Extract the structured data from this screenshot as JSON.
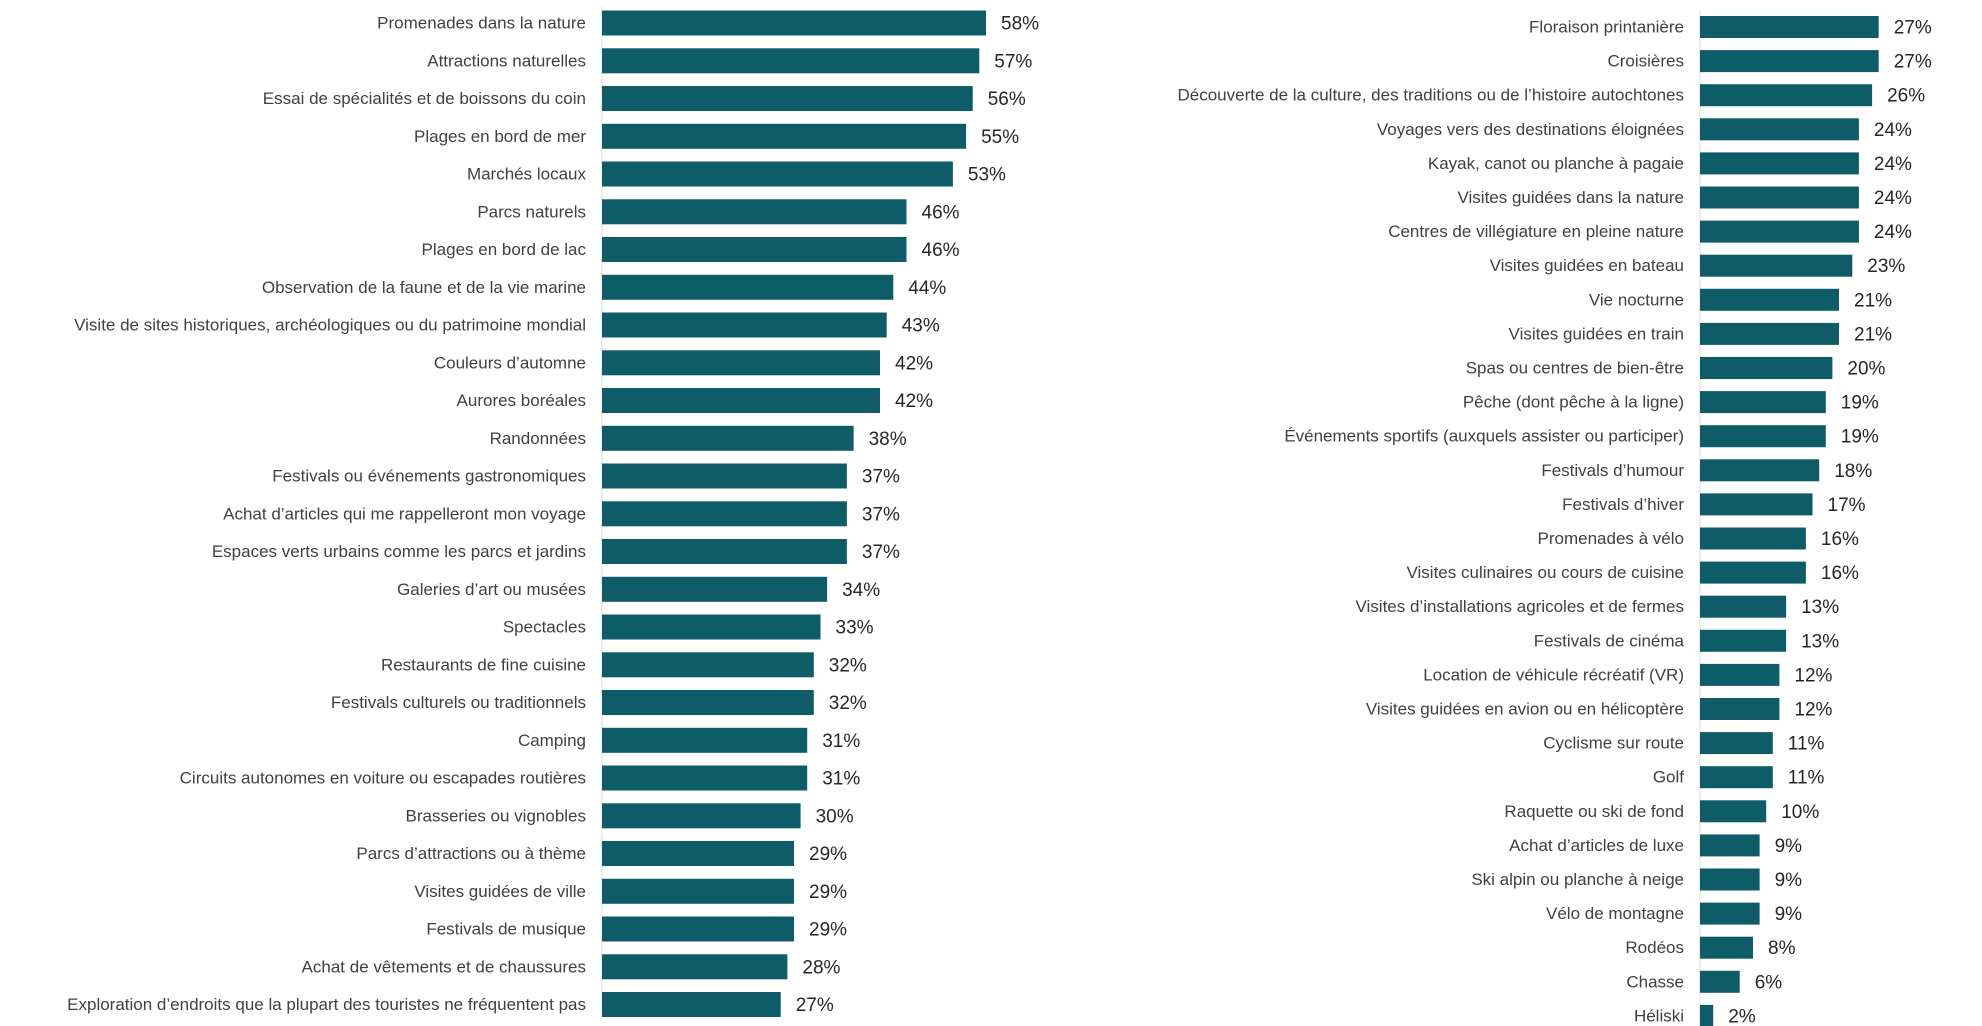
{
  "colors": {
    "bar": "#0d5c67",
    "axis": "#d9d9d9",
    "label": "#404040"
  },
  "chart_data": [
    {
      "type": "bar",
      "orientation": "horizontal",
      "xlim": [
        0,
        60
      ],
      "grid": false,
      "categories": [
        "Promenades dans la nature",
        "Attractions naturelles",
        "Essai de spécialités et de boissons du coin",
        "Plages en bord de mer",
        "Marchés locaux",
        "Parcs naturels",
        "Plages en bord de lac",
        "Observation de la faune et de la vie marine",
        "Visite de sites historiques, archéologiques ou du patrimoine mondial",
        "Couleurs d’automne",
        "Aurores boréales",
        "Randonnées",
        "Festivals ou événements gastronomiques",
        "Achat d’articles qui me rappelleront mon voyage",
        "Espaces verts urbains comme les parcs et jardins",
        "Galeries d’art ou musées",
        "Spectacles",
        "Restaurants de fine cuisine",
        "Festivals culturels ou traditionnels",
        "Camping",
        "Circuits autonomes en voiture ou escapades routières",
        "Brasseries ou vignobles",
        "Parcs d’attractions ou à thème",
        "Visites guidées de ville",
        "Festivals de musique",
        "Achat de vêtements et de chaussures",
        "Exploration d’endroits que la plupart des touristes ne fréquentent pas"
      ],
      "values": [
        58,
        57,
        56,
        55,
        53,
        46,
        46,
        44,
        43,
        42,
        42,
        38,
        37,
        37,
        37,
        34,
        33,
        32,
        32,
        31,
        31,
        30,
        29,
        29,
        29,
        28,
        27
      ],
      "value_labels": [
        "58%",
        "57%",
        "56%",
        "55%",
        "53%",
        "46%",
        "46%",
        "44%",
        "43%",
        "42%",
        "42%",
        "38%",
        "37%",
        "37%",
        "37%",
        "34%",
        "33%",
        "32%",
        "32%",
        "31%",
        "31%",
        "30%",
        "29%",
        "29%",
        "29%",
        "28%",
        "27%"
      ]
    },
    {
      "type": "bar",
      "orientation": "horizontal",
      "xlim": [
        0,
        60
      ],
      "grid": false,
      "categories": [
        "Floraison printanière",
        "Croisières",
        "Découverte de la culture, des traditions ou de l’histoire autochtones",
        "Voyages vers des destinations éloignées",
        "Kayak, canot ou planche à pagaie",
        "Visites guidées dans la nature",
        "Centres de villégiature en pleine nature",
        "Visites guidées en bateau",
        "Vie nocturne",
        "Visites guidées en train",
        "Spas ou centres de bien-être",
        "Pêche (dont pêche à la ligne)",
        "Événements sportifs (auxquels assister ou participer)",
        "Festivals d’humour",
        "Festivals d’hiver",
        "Promenades à vélo",
        "Visites culinaires ou cours de cuisine",
        "Visites d’installations agricoles et de fermes",
        "Festivals de cinéma",
        "Location de véhicule récréatif (VR)",
        "Visites guidées en avion ou en hélicoptère",
        "Cyclisme sur route",
        "Golf",
        "Raquette ou ski de fond",
        "Achat d’articles de luxe",
        "Ski alpin ou planche à neige",
        "Vélo de montagne",
        "Rodéos",
        "Chasse",
        "Héliski"
      ],
      "values": [
        27,
        27,
        26,
        24,
        24,
        24,
        24,
        23,
        21,
        21,
        20,
        19,
        19,
        18,
        17,
        16,
        16,
        13,
        13,
        12,
        12,
        11,
        11,
        10,
        9,
        9,
        9,
        8,
        6,
        2
      ],
      "value_labels": [
        "27%",
        "27%",
        "26%",
        "24%",
        "24%",
        "24%",
        "24%",
        "23%",
        "21%",
        "21%",
        "20%",
        "19%",
        "19%",
        "18%",
        "17%",
        "16%",
        "16%",
        "13%",
        "13%",
        "12%",
        "12%",
        "11%",
        "11%",
        "10%",
        "9%",
        "9%",
        "9%",
        "8%",
        "6%",
        "2%"
      ]
    }
  ]
}
